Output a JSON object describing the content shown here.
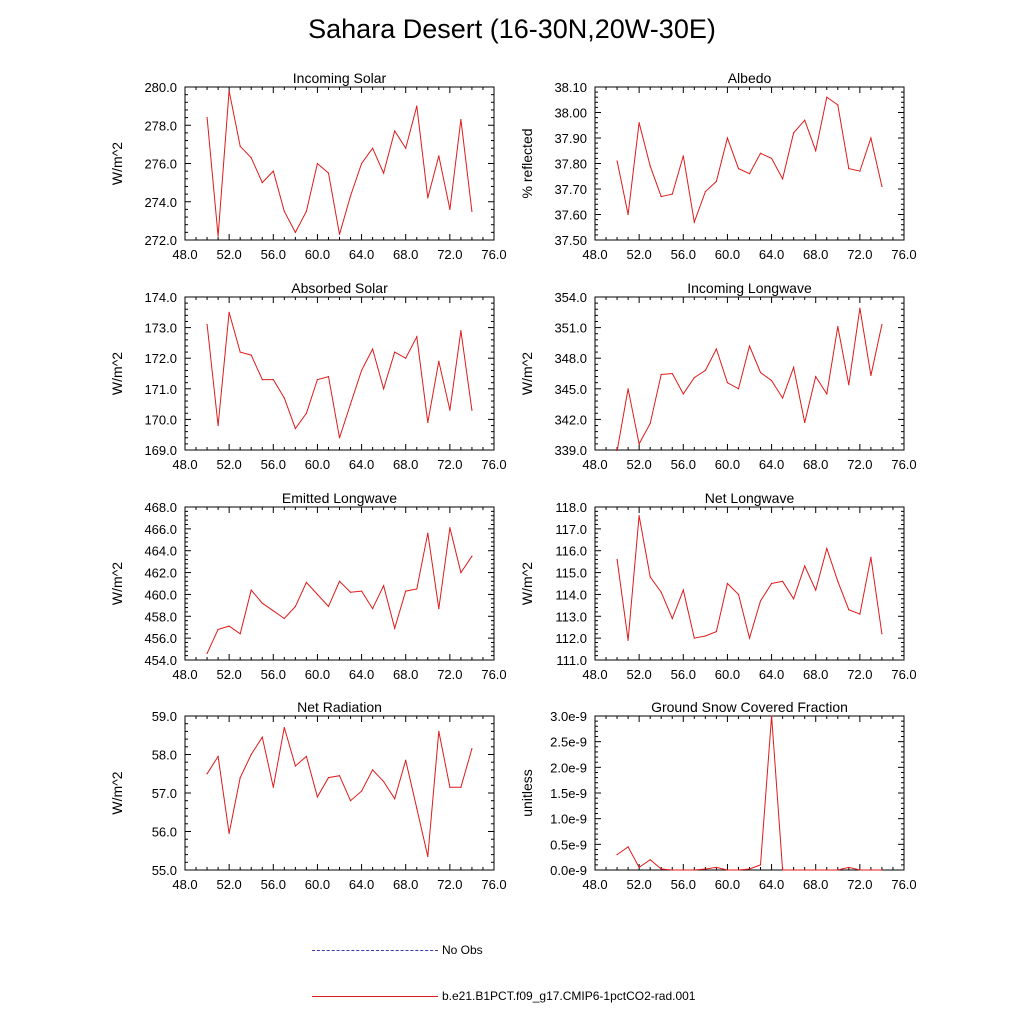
{
  "title": "Sahara Desert (16-30N,20W-30E)",
  "legend": [
    {
      "label": "No Obs",
      "color": "#3a3aa8",
      "style": "dashed"
    },
    {
      "label": "b.e21.B1PCT.f09_g17.CMIP6-1pctCO2-rad.001",
      "color": "#e01a1a",
      "style": "solid"
    }
  ],
  "colors": {
    "series": "#e01a1a",
    "axis": "#000000"
  },
  "chart_data": [
    {
      "type": "line",
      "title": "Incoming Solar",
      "ylabel": "W/m^2",
      "xlim": [
        48,
        76
      ],
      "ylim": [
        272,
        280
      ],
      "xticks": [
        48,
        52,
        56,
        60,
        64,
        68,
        72,
        76
      ],
      "xtick_labels": [
        "48.0",
        "52.0",
        "56.0",
        "60.0",
        "64.0",
        "68.0",
        "72.0",
        "76.0"
      ],
      "yticks": [
        272,
        274,
        276,
        278,
        280
      ],
      "ytick_labels": [
        "272.0",
        "274.0",
        "276.0",
        "278.0",
        "280.0"
      ],
      "x": [
        50,
        51,
        52,
        53,
        54,
        55,
        56,
        57,
        58,
        59,
        60,
        61,
        62,
        63,
        64,
        65,
        66,
        67,
        68,
        69,
        70,
        71,
        72,
        73,
        74
      ],
      "series": [
        {
          "name": "b.e21.B1PCT.f09_g17.CMIP6-1pctCO2-rad.001",
          "values": [
            278.4,
            272.2,
            279.8,
            276.9,
            276.3,
            275.0,
            275.6,
            273.5,
            272.4,
            273.5,
            276.0,
            275.5,
            272.3,
            274.3,
            276.0,
            276.8,
            275.5,
            277.7,
            276.8,
            279.0,
            274.2,
            276.4,
            273.6,
            278.3,
            273.5
          ]
        }
      ]
    },
    {
      "type": "line",
      "title": "Albedo",
      "ylabel": "% reflected",
      "xlim": [
        48,
        76
      ],
      "ylim": [
        37.5,
        38.1
      ],
      "xticks": [
        48,
        52,
        56,
        60,
        64,
        68,
        72,
        76
      ],
      "xtick_labels": [
        "48.0",
        "52.0",
        "56.0",
        "60.0",
        "64.0",
        "68.0",
        "72.0",
        "76.0"
      ],
      "yticks": [
        37.5,
        37.6,
        37.7,
        37.8,
        37.9,
        38.0,
        38.1
      ],
      "ytick_labels": [
        "37.50",
        "37.60",
        "37.70",
        "37.80",
        "37.90",
        "38.00",
        "38.10"
      ],
      "x": [
        50,
        51,
        52,
        53,
        54,
        55,
        56,
        57,
        58,
        59,
        60,
        61,
        62,
        63,
        64,
        65,
        66,
        67,
        68,
        69,
        70,
        71,
        72,
        73,
        74
      ],
      "series": [
        {
          "name": "b.e21.B1PCT.f09_g17.CMIP6-1pctCO2-rad.001",
          "values": [
            37.81,
            37.6,
            37.96,
            37.79,
            37.67,
            37.68,
            37.83,
            37.57,
            37.69,
            37.73,
            37.9,
            37.78,
            37.76,
            37.84,
            37.82,
            37.74,
            37.92,
            37.97,
            37.85,
            38.06,
            38.03,
            37.78,
            37.77,
            37.9,
            37.71
          ]
        }
      ]
    },
    {
      "type": "line",
      "title": "Absorbed Solar",
      "ylabel": "W/m^2",
      "xlim": [
        48,
        76
      ],
      "ylim": [
        169,
        174
      ],
      "xticks": [
        48,
        52,
        56,
        60,
        64,
        68,
        72,
        76
      ],
      "xtick_labels": [
        "48.0",
        "52.0",
        "56.0",
        "60.0",
        "64.0",
        "68.0",
        "72.0",
        "76.0"
      ],
      "yticks": [
        169,
        170,
        171,
        172,
        173,
        174
      ],
      "ytick_labels": [
        "169.0",
        "170.0",
        "171.0",
        "172.0",
        "173.0",
        "174.0"
      ],
      "x": [
        50,
        51,
        52,
        53,
        54,
        55,
        56,
        57,
        58,
        59,
        60,
        61,
        62,
        63,
        64,
        65,
        66,
        67,
        68,
        69,
        70,
        71,
        72,
        73,
        74
      ],
      "series": [
        {
          "name": "b.e21.B1PCT.f09_g17.CMIP6-1pctCO2-rad.001",
          "values": [
            173.1,
            169.8,
            173.5,
            172.2,
            172.1,
            171.3,
            171.3,
            170.7,
            169.7,
            170.2,
            171.3,
            171.4,
            169.4,
            170.5,
            171.6,
            172.3,
            171.0,
            172.2,
            172.0,
            172.7,
            169.9,
            171.9,
            170.3,
            172.9,
            170.3
          ]
        }
      ]
    },
    {
      "type": "line",
      "title": "Incoming Longwave",
      "ylabel": "W/m^2",
      "xlim": [
        48,
        76
      ],
      "ylim": [
        339,
        354
      ],
      "xticks": [
        48,
        52,
        56,
        60,
        64,
        68,
        72,
        76
      ],
      "xtick_labels": [
        "48.0",
        "52.0",
        "56.0",
        "60.0",
        "64.0",
        "68.0",
        "72.0",
        "76.0"
      ],
      "yticks": [
        339,
        342,
        345,
        348,
        351,
        354
      ],
      "ytick_labels": [
        "339.0",
        "342.0",
        "345.0",
        "348.0",
        "351.0",
        "354.0"
      ],
      "x": [
        50,
        51,
        52,
        53,
        54,
        55,
        56,
        57,
        58,
        59,
        60,
        61,
        62,
        63,
        64,
        65,
        66,
        67,
        68,
        69,
        70,
        71,
        72,
        73,
        74
      ],
      "series": [
        {
          "name": "b.e21.B1PCT.f09_g17.CMIP6-1pctCO2-rad.001",
          "values": [
            338.9,
            345.0,
            339.6,
            341.6,
            346.4,
            346.5,
            344.5,
            346.1,
            346.8,
            348.9,
            345.6,
            345.0,
            349.2,
            346.6,
            345.8,
            344.1,
            347.1,
            341.7,
            346.2,
            344.5,
            351.1,
            345.4,
            352.9,
            346.3,
            351.3
          ]
        }
      ]
    },
    {
      "type": "line",
      "title": "Emitted Longwave",
      "ylabel": "W/m^2",
      "xlim": [
        48,
        76
      ],
      "ylim": [
        454,
        468
      ],
      "xticks": [
        48,
        52,
        56,
        60,
        64,
        68,
        72,
        76
      ],
      "xtick_labels": [
        "48.0",
        "52.0",
        "56.0",
        "60.0",
        "64.0",
        "68.0",
        "72.0",
        "76.0"
      ],
      "yticks": [
        454,
        456,
        458,
        460,
        462,
        464,
        466,
        468
      ],
      "ytick_labels": [
        "454.0",
        "456.0",
        "458.0",
        "460.0",
        "462.0",
        "464.0",
        "466.0",
        "468.0"
      ],
      "x": [
        50,
        51,
        52,
        53,
        54,
        55,
        56,
        57,
        58,
        59,
        60,
        61,
        62,
        63,
        64,
        65,
        66,
        67,
        68,
        69,
        70,
        71,
        72,
        73,
        74
      ],
      "series": [
        {
          "name": "b.e21.B1PCT.f09_g17.CMIP6-1pctCO2-rad.001",
          "values": [
            454.6,
            456.8,
            457.1,
            456.4,
            460.4,
            459.2,
            458.5,
            457.8,
            458.9,
            461.1,
            460.0,
            458.9,
            461.2,
            460.2,
            460.3,
            458.7,
            460.8,
            456.9,
            460.3,
            460.5,
            465.6,
            458.7,
            466.1,
            462.0,
            463.5
          ]
        }
      ]
    },
    {
      "type": "line",
      "title": "Net Longwave",
      "ylabel": "W/m^2",
      "xlim": [
        48,
        76
      ],
      "ylim": [
        111,
        118
      ],
      "xticks": [
        48,
        52,
        56,
        60,
        64,
        68,
        72,
        76
      ],
      "xtick_labels": [
        "48.0",
        "52.0",
        "56.0",
        "60.0",
        "64.0",
        "68.0",
        "72.0",
        "76.0"
      ],
      "yticks": [
        111,
        112,
        113,
        114,
        115,
        116,
        117,
        118
      ],
      "ytick_labels": [
        "111.0",
        "112.0",
        "113.0",
        "114.0",
        "115.0",
        "116.0",
        "117.0",
        "118.0"
      ],
      "x": [
        50,
        51,
        52,
        53,
        54,
        55,
        56,
        57,
        58,
        59,
        60,
        61,
        62,
        63,
        64,
        65,
        66,
        67,
        68,
        69,
        70,
        71,
        72,
        73,
        74
      ],
      "series": [
        {
          "name": "b.e21.B1PCT.f09_g17.CMIP6-1pctCO2-rad.001",
          "values": [
            115.6,
            111.9,
            117.6,
            114.8,
            114.1,
            112.9,
            114.2,
            112.0,
            112.1,
            112.3,
            114.5,
            114.0,
            112.0,
            113.7,
            114.5,
            114.6,
            113.8,
            115.3,
            114.2,
            116.1,
            114.6,
            113.3,
            113.1,
            115.7,
            112.2
          ]
        }
      ]
    },
    {
      "type": "line",
      "title": "Net Radiation",
      "ylabel": "W/m^2",
      "xlim": [
        48,
        76
      ],
      "ylim": [
        55,
        59
      ],
      "xticks": [
        48,
        52,
        56,
        60,
        64,
        68,
        72,
        76
      ],
      "xtick_labels": [
        "48.0",
        "52.0",
        "56.0",
        "60.0",
        "64.0",
        "68.0",
        "72.0",
        "76.0"
      ],
      "yticks": [
        55,
        56,
        57,
        58,
        59
      ],
      "ytick_labels": [
        "55.0",
        "56.0",
        "57.0",
        "58.0",
        "59.0"
      ],
      "x": [
        50,
        51,
        52,
        53,
        54,
        55,
        56,
        57,
        58,
        59,
        60,
        61,
        62,
        63,
        64,
        65,
        66,
        67,
        68,
        69,
        70,
        71,
        72,
        73,
        74
      ],
      "series": [
        {
          "name": "b.e21.B1PCT.f09_g17.CMIP6-1pctCO2-rad.001",
          "values": [
            57.5,
            57.95,
            55.95,
            57.4,
            58.0,
            58.45,
            57.15,
            58.7,
            57.7,
            57.95,
            56.9,
            57.4,
            57.45,
            56.8,
            57.05,
            57.6,
            57.3,
            56.85,
            57.85,
            56.6,
            55.35,
            58.6,
            57.15,
            57.15,
            58.15
          ]
        }
      ]
    },
    {
      "type": "line",
      "title": "Ground Snow Covered Fraction",
      "ylabel": "unitless",
      "xlim": [
        48,
        76
      ],
      "ylim": [
        0,
        3e-09
      ],
      "xticks": [
        48,
        52,
        56,
        60,
        64,
        68,
        72,
        76
      ],
      "xtick_labels": [
        "48.0",
        "52.0",
        "56.0",
        "60.0",
        "64.0",
        "68.0",
        "72.0",
        "76.0"
      ],
      "yticks": [
        0,
        5e-10,
        1e-09,
        1.5e-09,
        2e-09,
        2.5e-09,
        3e-09
      ],
      "ytick_labels": [
        "0.0e-9",
        "0.5e-9",
        "1.0e-9",
        "1.5e-9",
        "2.0e-9",
        "2.5e-9",
        "3.0e-9"
      ],
      "x": [
        50,
        51,
        52,
        53,
        54,
        55,
        56,
        57,
        58,
        59,
        60,
        61,
        62,
        63,
        64,
        65,
        66,
        67,
        68,
        69,
        70,
        71,
        72,
        73,
        74
      ],
      "series": [
        {
          "name": "b.e21.B1PCT.f09_g17.CMIP6-1pctCO2-rad.001",
          "values": [
            3e-10,
            4.5e-10,
            5e-11,
            2e-10,
            2e-11,
            0,
            0,
            0,
            2e-11,
            5e-11,
            0,
            0,
            2e-11,
            1e-10,
            3e-09,
            0,
            0,
            0,
            0,
            0,
            0,
            5e-11,
            0,
            0,
            0
          ]
        }
      ]
    }
  ]
}
